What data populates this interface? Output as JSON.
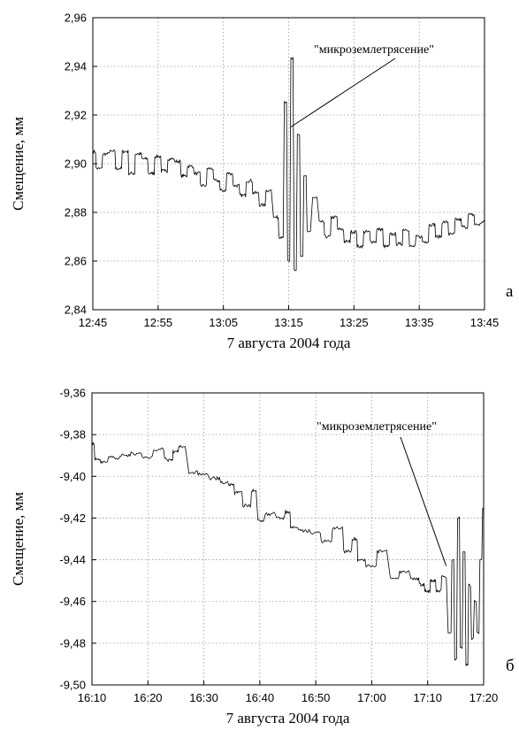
{
  "chart_data": [
    {
      "type": "line",
      "panel_label": "а",
      "xlabel": "7 августа 2004 года",
      "ylabel": "Смещение, мм",
      "xlim": [
        "12:45",
        "13:45"
      ],
      "ylim": [
        2.84,
        2.96
      ],
      "x_ticks": [
        "12:45",
        "12:55",
        "13:05",
        "13:15",
        "13:25",
        "13:35",
        "13:45"
      ],
      "y_ticks": [
        "2,84",
        "2,86",
        "2,88",
        "2,90",
        "2,92",
        "2,94",
        "2,96"
      ],
      "grid": true,
      "annotation": {
        "text": "\"микроземлетрясение\"",
        "points_to": {
          "x": "13:15",
          "y": 2.915
        }
      },
      "series": [
        {
          "x": [
            "12:45",
            "12:46",
            "12:47",
            "12:48",
            "12:49",
            "12:50",
            "12:51",
            "12:52",
            "12:53",
            "12:54",
            "12:55",
            "12:56",
            "12:57",
            "12:58",
            "12:59",
            "13:00",
            "13:01",
            "13:02",
            "13:03",
            "13:04",
            "13:05",
            "13:06",
            "13:07",
            "13:08",
            "13:09",
            "13:10",
            "13:11",
            "13:12",
            "13:13",
            "13:14",
            "13:14:30",
            "13:15",
            "13:15:30",
            "13:16",
            "13:16:30",
            "13:17",
            "13:17:30",
            "13:18",
            "13:19",
            "13:20",
            "13:21",
            "13:22",
            "13:23",
            "13:24",
            "13:25",
            "13:26",
            "13:27",
            "13:28",
            "13:29",
            "13:30",
            "13:31",
            "13:32",
            "13:33",
            "13:34",
            "13:35",
            "13:36",
            "13:37",
            "13:38",
            "13:39",
            "13:40",
            "13:41",
            "13:42",
            "13:43",
            "13:44",
            "13:45"
          ],
          "values": [
            2.905,
            2.898,
            2.904,
            2.905,
            2.898,
            2.905,
            2.896,
            2.904,
            2.902,
            2.896,
            2.903,
            2.897,
            2.902,
            2.901,
            2.895,
            2.899,
            2.896,
            2.891,
            2.898,
            2.893,
            2.889,
            2.896,
            2.891,
            2.887,
            2.893,
            2.888,
            2.883,
            2.889,
            2.878,
            2.87,
            2.925,
            2.86,
            2.943,
            2.856,
            2.912,
            2.862,
            2.895,
            2.872,
            2.886,
            2.876,
            2.87,
            2.878,
            2.873,
            2.868,
            2.872,
            2.866,
            2.872,
            2.868,
            2.873,
            2.866,
            2.871,
            2.867,
            2.873,
            2.866,
            2.87,
            2.868,
            2.875,
            2.87,
            2.876,
            2.871,
            2.877,
            2.874,
            2.879,
            2.875,
            2.876
          ]
        }
      ]
    },
    {
      "type": "line",
      "panel_label": "б",
      "xlabel": "7 августа 2004 года",
      "ylabel": "Смещение, мм",
      "xlim": [
        "16:10",
        "17:20"
      ],
      "ylim": [
        -9.5,
        -9.36
      ],
      "x_ticks": [
        "16:10",
        "16:20",
        "16:30",
        "16:40",
        "16:50",
        "17:00",
        "17:10",
        "17:20"
      ],
      "y_ticks": [
        "-9,50",
        "-9,48",
        "-9,46",
        "-9,44",
        "-9,42",
        "-9,40",
        "-9,38",
        "-9,36"
      ],
      "grid": true,
      "annotation": {
        "text": "\"микроземлетрясение\"",
        "points_to": {
          "x": "17:13",
          "y": -9.443
        }
      },
      "series": [
        {
          "x": [
            "16:10",
            "16:11",
            "16:12",
            "16:14",
            "16:16",
            "16:18",
            "16:20",
            "16:22",
            "16:24",
            "16:25",
            "16:26",
            "16:28",
            "16:30",
            "16:32",
            "16:34",
            "16:35",
            "16:36",
            "16:38",
            "16:39",
            "16:40",
            "16:42",
            "16:44",
            "16:45",
            "16:46",
            "16:48",
            "16:50",
            "16:52",
            "16:54",
            "16:56",
            "16:57",
            "16:58",
            "17:00",
            "17:02",
            "17:04",
            "17:06",
            "17:08",
            "17:09",
            "17:10",
            "17:11",
            "17:12",
            "17:13",
            "17:14",
            "17:14:30",
            "17:15",
            "17:15:30",
            "17:16",
            "17:16:30",
            "17:17",
            "17:17:30",
            "17:18",
            "17:18:30",
            "17:19",
            "17:19:30",
            "17:20"
          ],
          "values": [
            -9.384,
            -9.392,
            -9.393,
            -9.391,
            -9.39,
            -9.389,
            -9.391,
            -9.387,
            -9.392,
            -9.388,
            -9.386,
            -9.398,
            -9.399,
            -9.401,
            -9.403,
            -9.404,
            -9.408,
            -9.414,
            -9.407,
            -9.421,
            -9.418,
            -9.42,
            -9.417,
            -9.424,
            -9.426,
            -9.427,
            -9.431,
            -9.425,
            -9.436,
            -9.43,
            -9.44,
            -9.443,
            -9.436,
            -9.449,
            -9.446,
            -9.449,
            -9.452,
            -9.455,
            -9.45,
            -9.455,
            -9.448,
            -9.475,
            -9.44,
            -9.488,
            -9.42,
            -9.482,
            -9.436,
            -9.49,
            -9.452,
            -9.478,
            -9.46,
            -9.475,
            -9.44,
            -9.416
          ]
        }
      ]
    }
  ]
}
